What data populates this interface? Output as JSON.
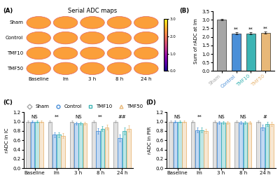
{
  "chart_data": [
    {
      "type": "image_grid",
      "panel": "(A)",
      "title": "Serial ADC maps",
      "rows": [
        "Sham",
        "Control",
        "TMF10",
        "TMF50"
      ],
      "columns": [
        "Baseline",
        "Im",
        "3 h",
        "8 h",
        "24 h"
      ],
      "colorbar": {
        "range": [
          0.0,
          3.0
        ],
        "ticks": [
          {
            "value": 0.0,
            "label": "0.0"
          },
          {
            "value": 1.0,
            "label": "1.0"
          },
          {
            "value": 2.0,
            "label": "2.0"
          },
          {
            "value": 3.0,
            "label": "3.0"
          }
        ]
      }
    },
    {
      "type": "bar",
      "panel": "(B)",
      "categories": [
        "Sham",
        "Control",
        "TMF10",
        "TMF50"
      ],
      "values": [
        3.0,
        2.2,
        2.2,
        2.25
      ],
      "errors": [
        0.04,
        0.07,
        0.07,
        0.06
      ],
      "colors": [
        "#a6a6a6",
        "#4a8fd8",
        "#3cb4b4",
        "#e8b878"
      ],
      "ylabel": "Sum of rADC at Im",
      "ylim": [
        0.0,
        3.5
      ],
      "yticks": [
        0.0,
        0.5,
        1.0,
        1.5,
        2.0,
        2.5,
        3.0,
        3.5
      ],
      "annotations": [
        {
          "category": "Control",
          "text": "**"
        },
        {
          "category": "TMF10",
          "text": "**"
        },
        {
          "category": "TMF50",
          "text": "**"
        }
      ]
    },
    {
      "type": "bar",
      "panel": "(C)",
      "categories": [
        "Baseline",
        "Im",
        "3 h",
        "8 h",
        "24 h"
      ],
      "series": [
        {
          "name": "Sham",
          "color": "#a6a6a6",
          "marker": "diamond",
          "values": [
            1.0,
            1.0,
            1.0,
            1.0,
            1.0
          ],
          "errors": [
            0.02,
            0.02,
            0.02,
            0.02,
            0.02
          ]
        },
        {
          "name": "Control",
          "color": "#4a8fd8",
          "marker": "circle",
          "values": [
            1.0,
            0.72,
            0.97,
            0.8,
            0.65
          ],
          "errors": [
            0.02,
            0.05,
            0.03,
            0.06,
            0.08
          ]
        },
        {
          "name": "TMF10",
          "color": "#3cb4b4",
          "marker": "square",
          "values": [
            1.0,
            0.72,
            0.97,
            0.85,
            0.8
          ],
          "errors": [
            0.02,
            0.05,
            0.03,
            0.05,
            0.07
          ]
        },
        {
          "name": "TMF50",
          "color": "#e8b878",
          "marker": "triangle",
          "values": [
            1.0,
            0.7,
            0.97,
            0.88,
            0.85
          ],
          "errors": [
            0.02,
            0.05,
            0.03,
            0.05,
            0.07
          ]
        }
      ],
      "ylabel": "rADC in IC",
      "ylim": [
        0.0,
        1.2
      ],
      "yticks": [
        0.0,
        0.2,
        0.4,
        0.6,
        0.8,
        1.0,
        1.2
      ],
      "legend": "upper center",
      "annotations": [
        {
          "category": "Baseline",
          "text": "NS"
        },
        {
          "category": "Im",
          "text": "**"
        },
        {
          "category": "3 h",
          "text": "NS"
        },
        {
          "category": "8 h",
          "text": "**"
        },
        {
          "category": "24 h",
          "text": "##"
        }
      ]
    },
    {
      "type": "bar",
      "panel": "(D)",
      "categories": [
        "Baseline",
        "Im",
        "3 h",
        "8 h",
        "24 h"
      ],
      "series": [
        {
          "name": "Sham",
          "color": "#a6a6a6",
          "marker": "diamond",
          "values": [
            1.0,
            1.0,
            1.0,
            1.0,
            1.0
          ],
          "errors": [
            0.02,
            0.02,
            0.02,
            0.02,
            0.02
          ]
        },
        {
          "name": "Control",
          "color": "#4a8fd8",
          "marker": "circle",
          "values": [
            1.0,
            0.82,
            0.98,
            0.98,
            0.88
          ],
          "errors": [
            0.02,
            0.05,
            0.03,
            0.03,
            0.06
          ]
        },
        {
          "name": "TMF10",
          "color": "#3cb4b4",
          "marker": "square",
          "values": [
            1.0,
            0.82,
            0.98,
            0.98,
            0.95
          ],
          "errors": [
            0.02,
            0.05,
            0.03,
            0.03,
            0.05
          ]
        },
        {
          "name": "TMF50",
          "color": "#e8b878",
          "marker": "triangle",
          "values": [
            1.0,
            0.8,
            0.98,
            0.98,
            0.95
          ],
          "errors": [
            0.02,
            0.05,
            0.03,
            0.03,
            0.05
          ]
        }
      ],
      "ylabel": "rADC in PIR",
      "ylim": [
        0.0,
        1.2
      ],
      "yticks": [
        0.0,
        0.2,
        0.4,
        0.6,
        0.8,
        1.0,
        1.2
      ],
      "annotations": [
        {
          "category": "Baseline",
          "text": "NS"
        },
        {
          "category": "Im",
          "text": "**"
        },
        {
          "category": "3 h",
          "text": "NS"
        },
        {
          "category": "8 h",
          "text": "NS"
        },
        {
          "category": "24 h",
          "text": "#"
        }
      ]
    }
  ]
}
